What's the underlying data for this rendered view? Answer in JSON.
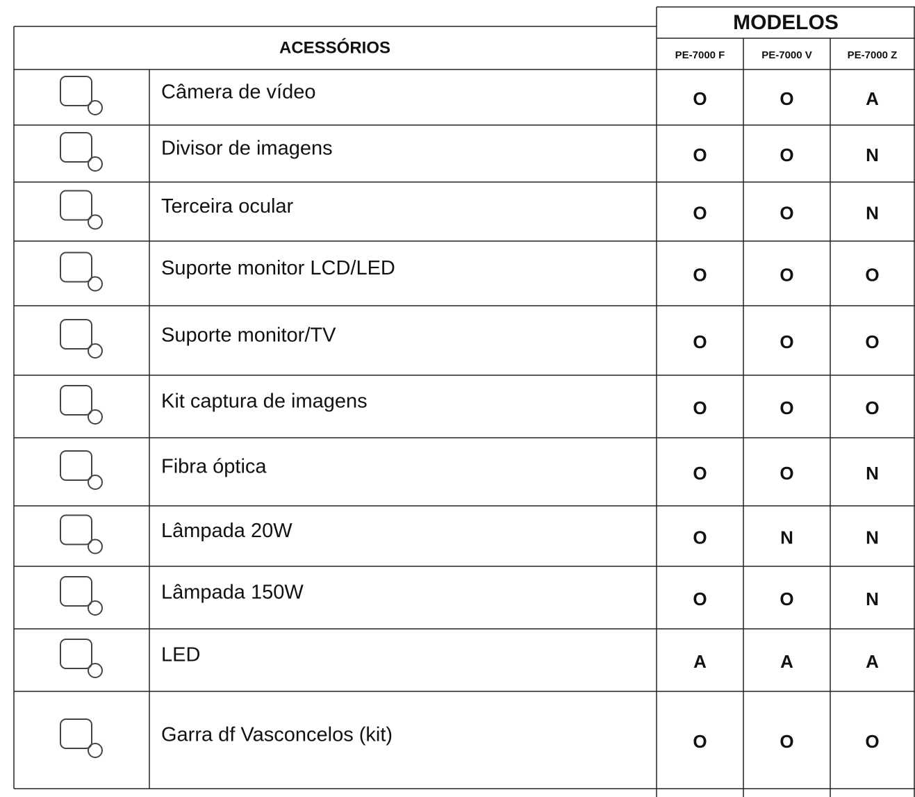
{
  "table": {
    "group_header": "MODELOS",
    "header": "ACESSÓRIOS",
    "columns": [
      "PE-7000 F",
      "PE-7000 V",
      "PE-7000 Z"
    ],
    "rows": [
      {
        "name": "Câmera de vídeo",
        "values": [
          "O",
          "O",
          "A"
        ]
      },
      {
        "name": "Divisor de imagens",
        "values": [
          "O",
          "O",
          "N"
        ]
      },
      {
        "name": "Terceira ocular",
        "values": [
          "O",
          "O",
          "N"
        ]
      },
      {
        "name": "Suporte monitor LCD/LED",
        "values": [
          "O",
          "O",
          "O"
        ]
      },
      {
        "name": "Suporte monitor/TV",
        "values": [
          "O",
          "O",
          "O"
        ]
      },
      {
        "name": "Kit captura de imagens",
        "values": [
          "O",
          "O",
          "O"
        ]
      },
      {
        "name": "Fibra óptica",
        "values": [
          "O",
          "O",
          "N"
        ]
      },
      {
        "name": "Lâmpada 20W",
        "values": [
          "O",
          "N",
          "N"
        ]
      },
      {
        "name": "Lâmpada 150W",
        "values": [
          "O",
          "O",
          "N"
        ]
      },
      {
        "name": "LED",
        "values": [
          "A",
          "A",
          "A"
        ]
      },
      {
        "name": "Garra df Vasconcelos (kit)",
        "values": [
          "O",
          "O",
          "O"
        ]
      }
    ]
  }
}
